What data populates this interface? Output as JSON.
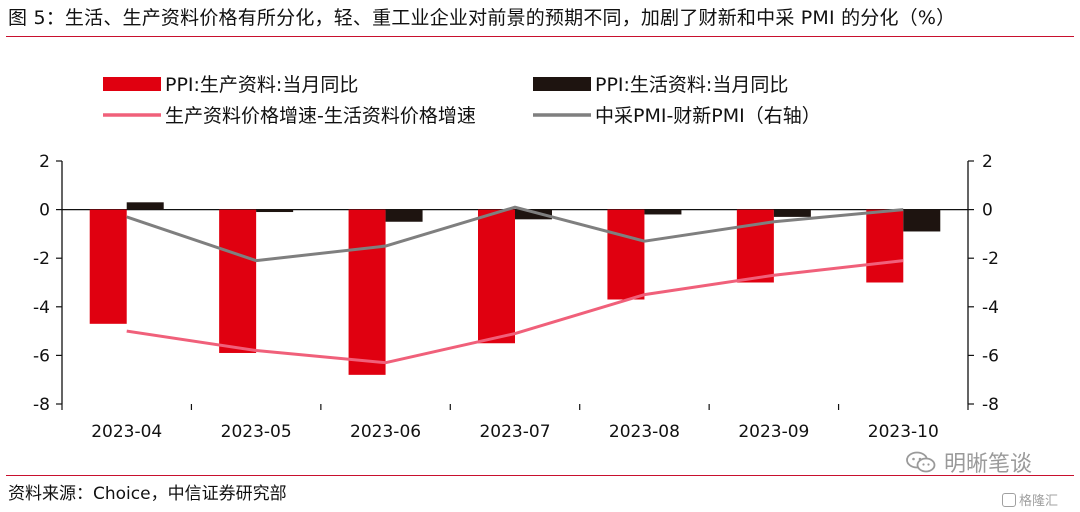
{
  "figure_title": "图 5：生活、生产资料价格有所分化，轻、重工业企业对前景的预期不同，加剧了财新和中采 PMI 的分化（%）",
  "source_text": "资料来源：Choice，中信证券研究部",
  "watermark_text": "明晰笔谈",
  "watermark2_text": "格隆汇",
  "colors": {
    "rule": "#c8102e",
    "ppi_production": "#e00010",
    "ppi_living": "#1e1410",
    "spread_line": "#f0607a",
    "pmi_line": "#7f7f7f"
  },
  "chart_data": {
    "type": "bar",
    "categories": [
      "2023-04",
      "2023-05",
      "2023-06",
      "2023-07",
      "2023-08",
      "2023-09",
      "2023-10"
    ],
    "series": [
      {
        "name": "PPI:生产资料:当月同比",
        "kind": "bar",
        "axis": "left",
        "values": [
          -4.7,
          -5.9,
          -6.8,
          -5.5,
          -3.7,
          -3.0,
          -3.0
        ]
      },
      {
        "name": "PPI:生活资料:当月同比",
        "kind": "bar",
        "axis": "left",
        "values": [
          0.3,
          -0.1,
          -0.5,
          -0.4,
          -0.2,
          -0.3,
          -0.9
        ]
      },
      {
        "name": "生产资料价格增速-生活资料价格增速",
        "kind": "line",
        "axis": "left",
        "values": [
          -5.0,
          -5.8,
          -6.3,
          -5.1,
          -3.5,
          -2.7,
          -2.1
        ]
      },
      {
        "name": "中采PMI-财新PMI（右轴）",
        "kind": "line",
        "axis": "right",
        "values": [
          -0.3,
          -2.1,
          -1.5,
          0.1,
          -1.3,
          -0.5,
          0.0
        ]
      }
    ],
    "ylim_left": [
      -8,
      2
    ],
    "ylim_right": [
      -8,
      2
    ],
    "yticks": [
      2,
      0,
      -2,
      -4,
      -6,
      -8
    ],
    "ytick_labels": [
      "2",
      "0",
      "-2",
      "-4",
      "-6",
      "-8"
    ],
    "legend_placement": "top",
    "grid": false
  }
}
